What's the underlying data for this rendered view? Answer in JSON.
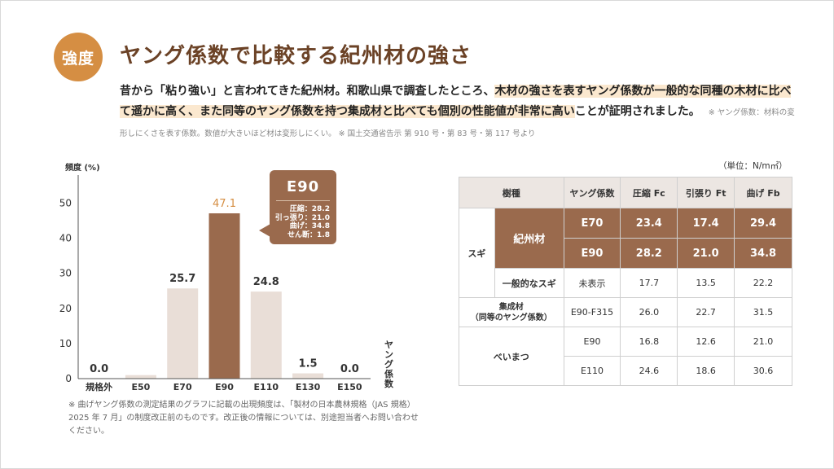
{
  "badge": "強度",
  "title": "ヤング係数で比較する紀州材の強さ",
  "intro": {
    "p1": "昔から「粘り強い」と言われてきた紀州材。和歌山県で調査したところ、",
    "p2_hl": "木材の強さを表すヤング係数が一般的な同種の木材に比べて遥かに高く、また同等のヤング係数を持つ集成材と比べても個別の性能値が非常に高い",
    "p3": "ことが証明されました。",
    "note": "※ ヤング係数：材料の変形しにくさを表す係数。数値が大きいほど材は変形しにくい。 ※ 国土交通省告示 第 910 号・第 83 号・第 117 号より"
  },
  "chart_data": {
    "type": "bar",
    "title": "",
    "ylabel": "頻度 (%)",
    "xlabel": "ヤング係数",
    "categories": [
      "規格外",
      "E50",
      "E70",
      "E90",
      "E110",
      "E130",
      "E150"
    ],
    "values": [
      0.0,
      1.0,
      25.7,
      47.1,
      24.8,
      1.5,
      0.0
    ],
    "value_labels": [
      "0.0",
      "",
      "25.7",
      "47.1",
      "24.8",
      "1.5",
      "0.0"
    ],
    "highlight": "E90",
    "ylim": [
      0,
      58
    ],
    "yticks": [
      0,
      10,
      20,
      30,
      40,
      50
    ],
    "colors": {
      "bar": "#e9ded7",
      "highlight": "#9a6a4d",
      "highlight_label": "#d58e43"
    },
    "callout": {
      "title": "E90",
      "items": [
        "圧縮：28.2",
        "引っ張り：21.0",
        "曲げ：34.8",
        "せん断：1.8"
      ]
    }
  },
  "footnote": "※ 曲げヤング係数の測定結果のグラフに記載の出現頻度は、「製材の日本農林規格（JAS 規格）2025 年 7 月」の制度改正前のものです。改正後の情報については、別途担当者へお問い合わせください。",
  "table": {
    "unit": "（単位：N/m㎡）",
    "headers": [
      "樹種",
      "ヤング係数",
      "圧縮 Fc",
      "引張り Ft",
      "曲げ Fb"
    ],
    "sugi_label": "スギ",
    "kishu_label": "紀州材",
    "kishu_rows": [
      {
        "grade": "E70",
        "fc": "23.4",
        "ft": "17.4",
        "fb": "29.4"
      },
      {
        "grade": "E90",
        "fc": "28.2",
        "ft": "21.0",
        "fb": "34.8"
      }
    ],
    "general": {
      "label": "一般的なスギ",
      "grade": "未表示",
      "fc": "17.7",
      "ft": "13.5",
      "fb": "22.2"
    },
    "glulam": {
      "label1": "集成材",
      "label2": "（同等のヤング係数）",
      "grade": "E90-F315",
      "fc": "26.0",
      "ft": "22.7",
      "fb": "31.5"
    },
    "beimatsu_label": "べいまつ",
    "beimatsu_rows": [
      {
        "grade": "E90",
        "fc": "16.8",
        "ft": "12.6",
        "fb": "21.0"
      },
      {
        "grade": "E110",
        "fc": "24.6",
        "ft": "18.6",
        "fb": "30.6"
      }
    ]
  }
}
